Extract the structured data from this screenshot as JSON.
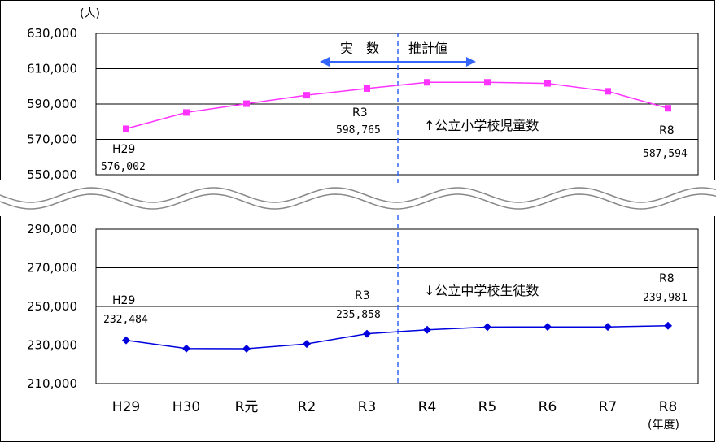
{
  "chart_data": {
    "type": "line",
    "unit": "(人)",
    "year_unit": "(年度)",
    "categories": [
      "H29",
      "H30",
      "R元",
      "R2",
      "R3",
      "R4",
      "R5",
      "R6",
      "R7",
      "R8"
    ],
    "actual_label": "実　数",
    "estimate_label": "推計値",
    "top_panel": {
      "yticks": [
        "630,000",
        "610,000",
        "590,000",
        "570,000",
        "550,000"
      ],
      "ylim": [
        550000,
        630000
      ],
      "series": [
        {
          "name": "↑公立小学校児童数",
          "color": "#ff33ff",
          "values": [
            576002,
            585200,
            590200,
            595000,
            598765,
            602300,
            602300,
            601700,
            597200,
            587594
          ]
        }
      ]
    },
    "bottom_panel": {
      "yticks": [
        "290,000",
        "270,000",
        "250,000",
        "230,000",
        "210,000"
      ],
      "ylim": [
        210000,
        290000
      ],
      "series": [
        {
          "name": "↓公立中学校生徒数",
          "color": "#0000dd",
          "values": [
            232484,
            228200,
            228100,
            230600,
            235858,
            237900,
            239300,
            239400,
            239400,
            239981
          ]
        }
      ]
    },
    "labels": {
      "top_h29": {
        "cat": "H29",
        "value": "576,002"
      },
      "top_r3": {
        "cat": "R3",
        "value": "598,765"
      },
      "top_r8": {
        "cat": "R8",
        "value": "587,594"
      },
      "bot_h29": {
        "cat": "H29",
        "value": "232,484"
      },
      "bot_r3": {
        "cat": "R3",
        "value": "235,858"
      },
      "bot_r8": {
        "cat": "R8",
        "value": "239,981"
      }
    }
  }
}
